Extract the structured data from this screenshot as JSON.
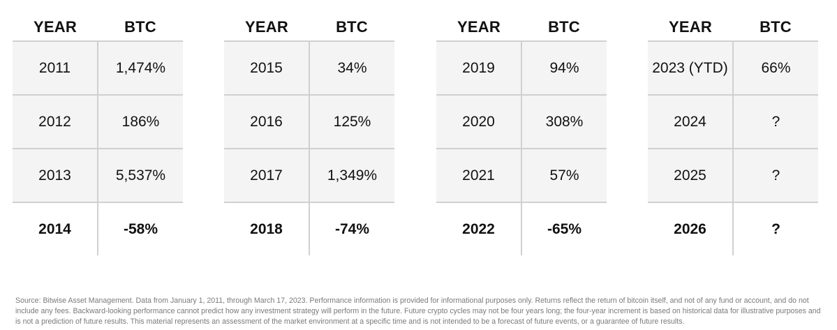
{
  "tables": [
    {
      "headers": [
        "YEAR",
        "BTC"
      ],
      "rows": [
        {
          "year": "2011",
          "btc": "1,474%"
        },
        {
          "year": "2012",
          "btc": "186%"
        },
        {
          "year": "2013",
          "btc": "5,537%"
        },
        {
          "year": "2014",
          "btc": "-58%"
        }
      ]
    },
    {
      "headers": [
        "YEAR",
        "BTC"
      ],
      "rows": [
        {
          "year": "2015",
          "btc": "34%"
        },
        {
          "year": "2016",
          "btc": "125%"
        },
        {
          "year": "2017",
          "btc": "1,349%"
        },
        {
          "year": "2018",
          "btc": "-74%"
        }
      ]
    },
    {
      "headers": [
        "YEAR",
        "BTC"
      ],
      "rows": [
        {
          "year": "2019",
          "btc": "94%"
        },
        {
          "year": "2020",
          "btc": "308%"
        },
        {
          "year": "2021",
          "btc": "57%"
        },
        {
          "year": "2022",
          "btc": "-65%"
        }
      ]
    },
    {
      "headers": [
        "YEAR",
        "BTC"
      ],
      "rows": [
        {
          "year": "2023 (YTD)",
          "btc": "66%"
        },
        {
          "year": "2024",
          "btc": "?"
        },
        {
          "year": "2025",
          "btc": "?"
        },
        {
          "year": "2026",
          "btc": "?"
        }
      ]
    }
  ],
  "footnote": "Source: Bitwise Asset Management. Data from January 1, 2011, through March 17, 2023. Performance information is provided for informational purposes only. Returns reflect the return of bitcoin itself, and not of any fund or account, and do not include any fees. Backward-looking performance cannot predict how any investment strategy will perform in the future. Future crypto cycles may not be four years long; the four-year increment is based on historical data for illustrative purposes and is not a prediction of future results. This material represents an assessment of the market environment at a specific time and is not intended to be a forecast of future events, or a guarantee of future results.",
  "colors": {
    "text": "#111111",
    "grid": "#d0d0d0",
    "shaded_row": "#f4f4f4",
    "footnote": "#7a7a7a"
  }
}
